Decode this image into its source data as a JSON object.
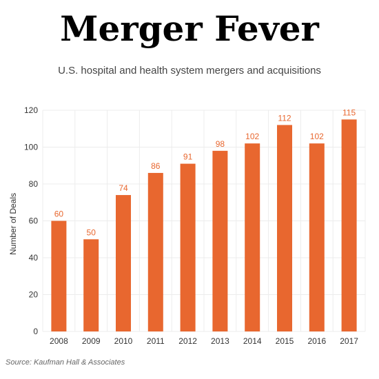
{
  "page": {
    "title": "Merger Fever",
    "subtitle": "U.S. hospital and health system mergers and acquisitions",
    "source": "Source: Kaufman Hall & Associates"
  },
  "chart_data": {
    "type": "bar",
    "title": "Merger Fever",
    "subtitle": "U.S. hospital and health system mergers and acquisitions",
    "categories": [
      "2008",
      "2009",
      "2010",
      "2011",
      "2012",
      "2013",
      "2014",
      "2015",
      "2016",
      "2017"
    ],
    "values": [
      60,
      50,
      74,
      86,
      91,
      98,
      102,
      112,
      102,
      115
    ],
    "xlabel": "",
    "ylabel": "Number of Deals",
    "ylim": [
      0,
      120
    ],
    "yticks": [
      0,
      20,
      40,
      60,
      80,
      100,
      120
    ],
    "grid": true,
    "bar_color": "#e8672f",
    "label_color": "#e8672f",
    "grid_color": "#ececec"
  }
}
